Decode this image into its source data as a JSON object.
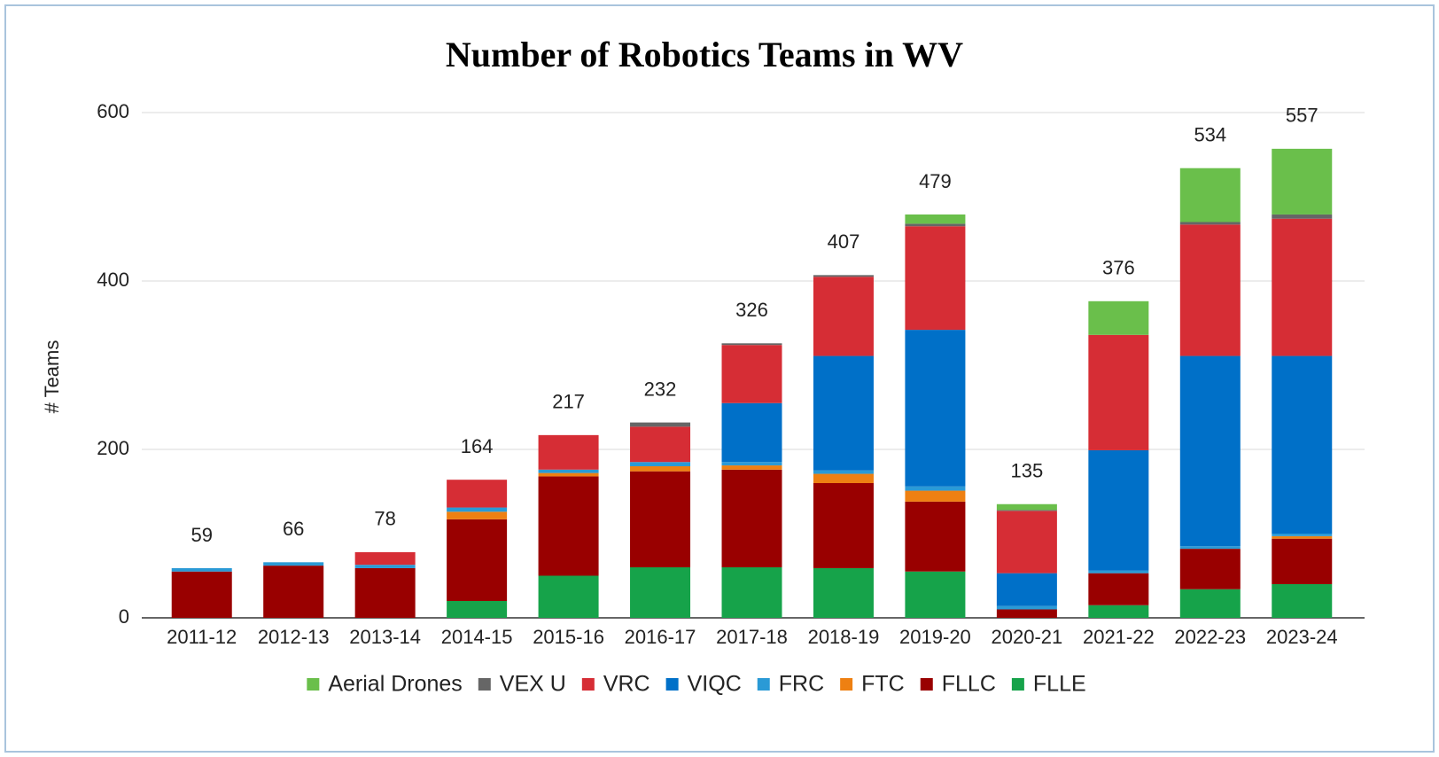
{
  "chart_data": {
    "type": "stacked_bar",
    "title": "Number of Robotics Teams in WV",
    "y_label": "# Teams",
    "categories": [
      "2011-12",
      "2012-13",
      "2013-14",
      "2014-15",
      "2015-16",
      "2016-17",
      "2017-18",
      "2018-19",
      "2019-20",
      "2020-21",
      "2021-22",
      "2022-23",
      "2023-24"
    ],
    "series": [
      {
        "name": "Aerial Drones",
        "color": "#6abf4b",
        "values": [
          0,
          0,
          0,
          0,
          0,
          0,
          0,
          0,
          11,
          7,
          40,
          64,
          78
        ]
      },
      {
        "name": "VEX U",
        "color": "#666666",
        "values": [
          0,
          0,
          0,
          0,
          0,
          5,
          2,
          2,
          3,
          1,
          0,
          3,
          5
        ]
      },
      {
        "name": "VRC",
        "color": "#d62d35",
        "values": [
          0,
          0,
          15,
          33,
          41,
          42,
          69,
          94,
          123,
          74,
          137,
          156,
          163
        ]
      },
      {
        "name": "VIQC",
        "color": "#0070c8",
        "values": [
          0,
          0,
          0,
          0,
          0,
          0,
          70,
          136,
          186,
          39,
          143,
          226,
          211
        ]
      },
      {
        "name": "FRC",
        "color": "#2a9ad6",
        "values": [
          4,
          4,
          4,
          5,
          4,
          5,
          4,
          4,
          5,
          4,
          3,
          3,
          3
        ]
      },
      {
        "name": "FTC",
        "color": "#ee8012",
        "values": [
          0,
          0,
          0,
          9,
          4,
          6,
          5,
          11,
          13,
          0,
          0,
          0,
          3
        ]
      },
      {
        "name": "FLLC",
        "color": "#990000",
        "values": [
          55,
          62,
          59,
          97,
          118,
          114,
          116,
          101,
          83,
          10,
          38,
          48,
          54
        ]
      },
      {
        "name": "FLLE",
        "color": "#16a34a",
        "values": [
          0,
          0,
          0,
          20,
          50,
          60,
          60,
          59,
          55,
          0,
          15,
          34,
          40
        ]
      }
    ],
    "totals": [
      59,
      66,
      78,
      164,
      217,
      232,
      326,
      407,
      479,
      135,
      376,
      534,
      557
    ],
    "ylim": [
      0,
      600
    ],
    "yticks": [
      0,
      200,
      400,
      600
    ],
    "grid": true,
    "legend": "bottom"
  }
}
